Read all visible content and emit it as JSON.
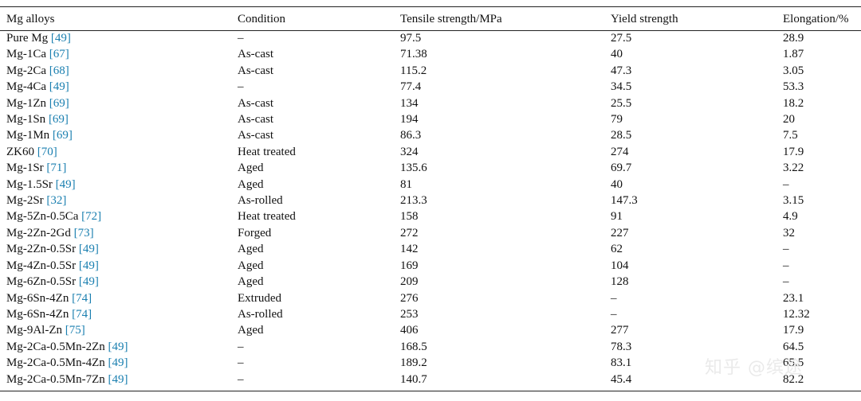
{
  "table": {
    "headers": [
      "Mg alloys",
      "Condition",
      "Tensile strength/MPa",
      "Yield strength",
      "Elongation/%"
    ],
    "rows": [
      {
        "alloy": "Pure Mg",
        "ref": "[49]",
        "condition": "–",
        "tensile": "97.5",
        "yield": "27.5",
        "elongation": "28.9"
      },
      {
        "alloy": "Mg-1Ca",
        "ref": "[67]",
        "condition": "As-cast",
        "tensile": "71.38",
        "yield": "40",
        "elongation": "1.87"
      },
      {
        "alloy": "Mg-2Ca",
        "ref": "[68]",
        "condition": "As-cast",
        "tensile": "115.2",
        "yield": "47.3",
        "elongation": "3.05"
      },
      {
        "alloy": "Mg-4Ca",
        "ref": "[49]",
        "condition": "–",
        "tensile": "77.4",
        "yield": "34.5",
        "elongation": "53.3"
      },
      {
        "alloy": "Mg-1Zn",
        "ref": "[69]",
        "condition": "As-cast",
        "tensile": "134",
        "yield": "25.5",
        "elongation": "18.2"
      },
      {
        "alloy": "Mg-1Sn",
        "ref": "[69]",
        "condition": "As-cast",
        "tensile": "194",
        "yield": "79",
        "elongation": "20"
      },
      {
        "alloy": "Mg-1Mn",
        "ref": "[69]",
        "condition": "As-cast",
        "tensile": "86.3",
        "yield": "28.5",
        "elongation": "7.5"
      },
      {
        "alloy": "ZK60",
        "ref": "[70]",
        "condition": "Heat treated",
        "tensile": "324",
        "yield": "274",
        "elongation": "17.9"
      },
      {
        "alloy": "Mg-1Sr",
        "ref": "[71]",
        "condition": "Aged",
        "tensile": "135.6",
        "yield": "69.7",
        "elongation": "3.22"
      },
      {
        "alloy": "Mg-1.5Sr",
        "ref": "[49]",
        "condition": "Aged",
        "tensile": "81",
        "yield": "40",
        "elongation": "–"
      },
      {
        "alloy": "Mg-2Sr",
        "ref": "[32]",
        "condition": "As-rolled",
        "tensile": "213.3",
        "yield": "147.3",
        "elongation": "3.15"
      },
      {
        "alloy": "Mg-5Zn-0.5Ca",
        "ref": "[72]",
        "condition": "Heat treated",
        "tensile": "158",
        "yield": "91",
        "elongation": "4.9"
      },
      {
        "alloy": "Mg-2Zn-2Gd",
        "ref": "[73]",
        "condition": "Forged",
        "tensile": "272",
        "yield": "227",
        "elongation": "32"
      },
      {
        "alloy": "Mg-2Zn-0.5Sr",
        "ref": "[49]",
        "condition": "Aged",
        "tensile": "142",
        "yield": "62",
        "elongation": "–"
      },
      {
        "alloy": "Mg-4Zn-0.5Sr",
        "ref": "[49]",
        "condition": "Aged",
        "tensile": "169",
        "yield": "104",
        "elongation": "–"
      },
      {
        "alloy": "Mg-6Zn-0.5Sr",
        "ref": "[49]",
        "condition": "Aged",
        "tensile": "209",
        "yield": "128",
        "elongation": "–"
      },
      {
        "alloy": "Mg-6Sn-4Zn",
        "ref": "[74]",
        "condition": "Extruded",
        "tensile": "276",
        "yield": "–",
        "elongation": "23.1"
      },
      {
        "alloy": "Mg-6Sn-4Zn",
        "ref": "[74]",
        "condition": "As-rolled",
        "tensile": "253",
        "yield": "–",
        "elongation": "12.32"
      },
      {
        "alloy": "Mg-9Al-Zn",
        "ref": "[75]",
        "condition": "Aged",
        "tensile": "406",
        "yield": "277",
        "elongation": "17.9"
      },
      {
        "alloy": "Mg-2Ca-0.5Mn-2Zn",
        "ref": "[49]",
        "condition": "–",
        "tensile": "168.5",
        "yield": "78.3",
        "elongation": "64.5"
      },
      {
        "alloy": "Mg-2Ca-0.5Mn-4Zn",
        "ref": "[49]",
        "condition": "–",
        "tensile": "189.2",
        "yield": "83.1",
        "elongation": "65.5"
      },
      {
        "alloy": "Mg-2Ca-0.5Mn-7Zn",
        "ref": "[49]",
        "condition": "–",
        "tensile": "140.7",
        "yield": "45.4",
        "elongation": "82.2"
      }
    ]
  },
  "watermark": "知乎 @缤途"
}
